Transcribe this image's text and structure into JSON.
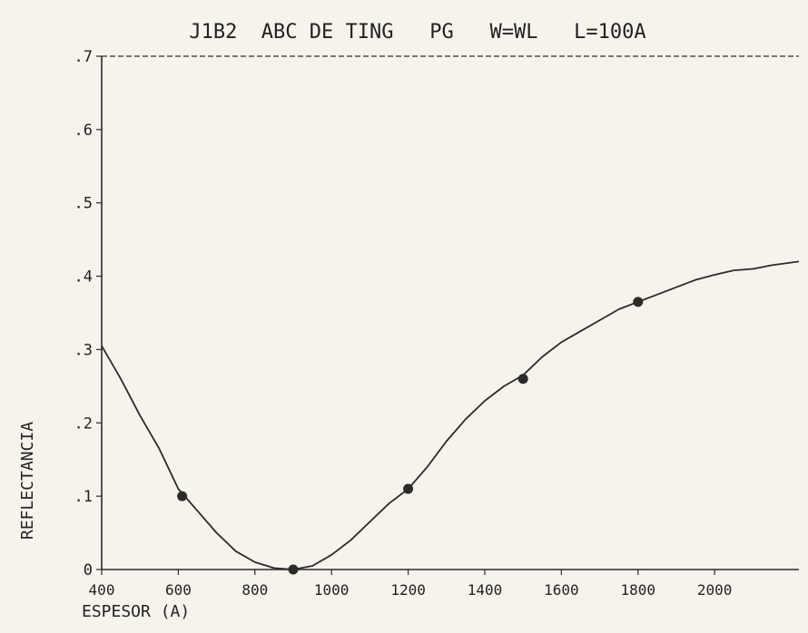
{
  "chart_data": {
    "type": "line",
    "title": "J1B2  ABC DE TING   PG   W=WL   L=100A",
    "xlabel": "ESPESOR (A)",
    "ylabel": "REFLECTANCIA",
    "xlim": [
      400,
      2220
    ],
    "ylim": [
      0,
      0.7
    ],
    "x_ticks": [
      400,
      600,
      800,
      1000,
      1200,
      1400,
      1600,
      1800,
      2000
    ],
    "x_tick_labels": [
      "400",
      "600",
      "800",
      "1000",
      "1200",
      "1400",
      "1600",
      "1800",
      "2000"
    ],
    "y_ticks": [
      0,
      0.1,
      0.2,
      0.3,
      0.4,
      0.5,
      0.6,
      0.7
    ],
    "y_tick_labels": [
      "0",
      ".1",
      ".2",
      ".3",
      ".4",
      ".5",
      ".6",
      ".7"
    ],
    "grid": false,
    "legend": "none",
    "line_color": "#2b2b2b",
    "series": [
      {
        "x": [
          400,
          450,
          500,
          550,
          600,
          650,
          700,
          750,
          800,
          850,
          900,
          950,
          1000,
          1050,
          1100,
          1150,
          1200,
          1250,
          1300,
          1350,
          1400,
          1450,
          1500,
          1550,
          1600,
          1650,
          1700,
          1750,
          1800,
          1850,
          1900,
          1950,
          2000,
          2050,
          2100,
          2150,
          2220
        ],
        "y": [
          0.305,
          0.26,
          0.21,
          0.165,
          0.11,
          0.08,
          0.05,
          0.025,
          0.01,
          0.002,
          0.0,
          0.005,
          0.02,
          0.04,
          0.065,
          0.09,
          0.11,
          0.14,
          0.175,
          0.205,
          0.23,
          0.25,
          0.265,
          0.29,
          0.31,
          0.325,
          0.34,
          0.355,
          0.365,
          0.375,
          0.385,
          0.395,
          0.402,
          0.408,
          0.41,
          0.415,
          0.42
        ]
      }
    ],
    "markers": {
      "x": [
        610,
        900,
        1200,
        1500,
        1800
      ],
      "y": [
        0.1,
        0.0,
        0.11,
        0.26,
        0.365
      ]
    }
  }
}
